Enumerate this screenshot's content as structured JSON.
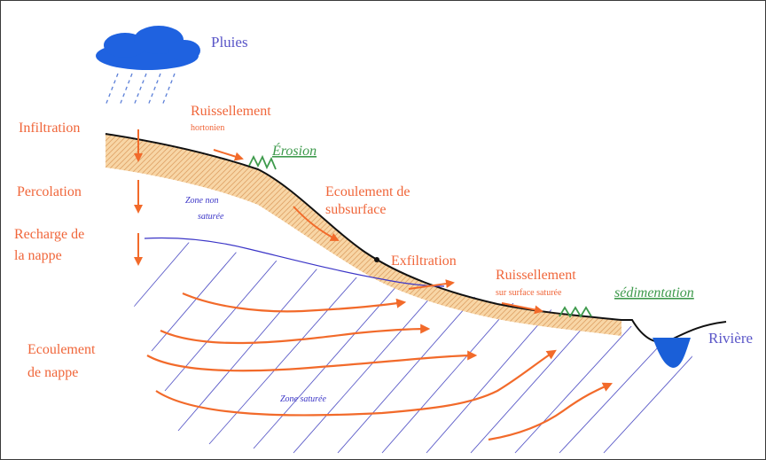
{
  "labels": {
    "pluies": "Pluies",
    "infiltration": "Infiltration",
    "ruissellement": "Ruissellement",
    "hortonien": "hortonien",
    "erosion": "Érosion",
    "percolation": "Percolation",
    "zone_non_saturee_1": "Zone non",
    "zone_non_saturee_2": "saturée",
    "ecoulement_subsurface_1": "Ecoulement de",
    "ecoulement_subsurface_2": "subsurface",
    "recharge_1": "Recharge de",
    "recharge_2": "la nappe",
    "exfiltration": "Exfiltration",
    "ruissellement_sature": "Ruissellement",
    "sur_surface_saturee": "sur surface saturée",
    "sedimentation": "sédimentation",
    "riviere": "Rivière",
    "ecoulement_nappe_1": "Ecoulement",
    "ecoulement_nappe_2": "de nappe",
    "zone_saturee": "Zone saturée"
  },
  "colors": {
    "label_orange": "#f0663a",
    "label_blue": "#5a56c8",
    "label_green": "#3e9a4c",
    "arrow_orange": "#f26a2a",
    "cloud_blue": "#1f62e0",
    "soil": "#f7cf9a",
    "water_table": "#3b35c7",
    "river_water": "#1a5fd8"
  },
  "icons": [
    "cloud-icon",
    "rain-icon",
    "grass-icon",
    "river-icon"
  ]
}
